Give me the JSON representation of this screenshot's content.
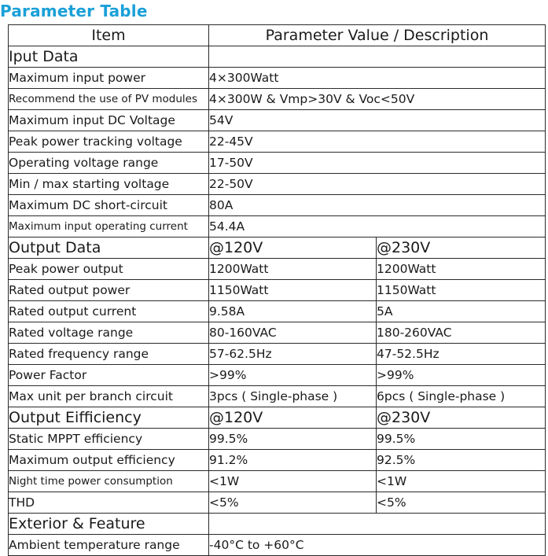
{
  "title": "Parameter Table",
  "header": {
    "item": "Item",
    "value": "Parameter Value / Description"
  },
  "input": {
    "title": "Iput Data",
    "rows": [
      {
        "label": "Maximum input power",
        "value": "4×300Watt"
      },
      {
        "label": "Recommend the use of PV modules",
        "value": "4×300W & Vmp>30V & Voc<50V"
      },
      {
        "label": "Maximum input DC Voltage",
        "value": "54V"
      },
      {
        "label": "Peak power tracking voltage",
        "value": "22-45V"
      },
      {
        "label": "Operating voltage range",
        "value": "17-50V"
      },
      {
        "label": "Min / max starting voltage",
        "value": "22-50V"
      },
      {
        "label": "Maximum DC short-circuit",
        "value": "80A"
      },
      {
        "label": "Maximum input operating current",
        "value": "54.4A"
      }
    ]
  },
  "output": {
    "title": "Output Data",
    "v1": "@120V",
    "v2": "@230V",
    "rows": [
      {
        "label": "Peak power output",
        "v1": "1200Watt",
        "v2": "1200Watt"
      },
      {
        "label": "Rated output power",
        "v1": "1150Watt",
        "v2": "1150Watt"
      },
      {
        "label": "Rated output current",
        "v1": "9.58A",
        "v2": "5A"
      },
      {
        "label": "Rated voltage range",
        "v1": "80-160VAC",
        "v2": "180-260VAC"
      },
      {
        "label": "Rated frequency range",
        "v1": "57-62.5Hz",
        "v2": "47-52.5Hz"
      },
      {
        "label": "Power Factor",
        "v1": ">99%",
        "v2": ">99%"
      },
      {
        "label": "Max unit per branch circuit",
        "v1": "3pcs ( Single-phase )",
        "v2": "6pcs ( Single-phase )"
      }
    ]
  },
  "efficiency": {
    "title": "Output Eifficiency",
    "v1": "@120V",
    "v2": "@230V",
    "rows": [
      {
        "label": "Static MPPT efficiency",
        "v1": "99.5%",
        "v2": "99.5%"
      },
      {
        "label": "Maximum output efficiency",
        "v1": "91.2%",
        "v2": "92.5%"
      },
      {
        "label": "Night time power consumption",
        "v1": "<1W",
        "v2": "<1W"
      },
      {
        "label": "THD",
        "v1": "<5%",
        "v2": "<5%"
      }
    ]
  },
  "exterior": {
    "title": "Exterior & Feature",
    "rows": [
      {
        "label": "Ambient temperature range",
        "value": "-40°C to +60°C"
      }
    ]
  }
}
